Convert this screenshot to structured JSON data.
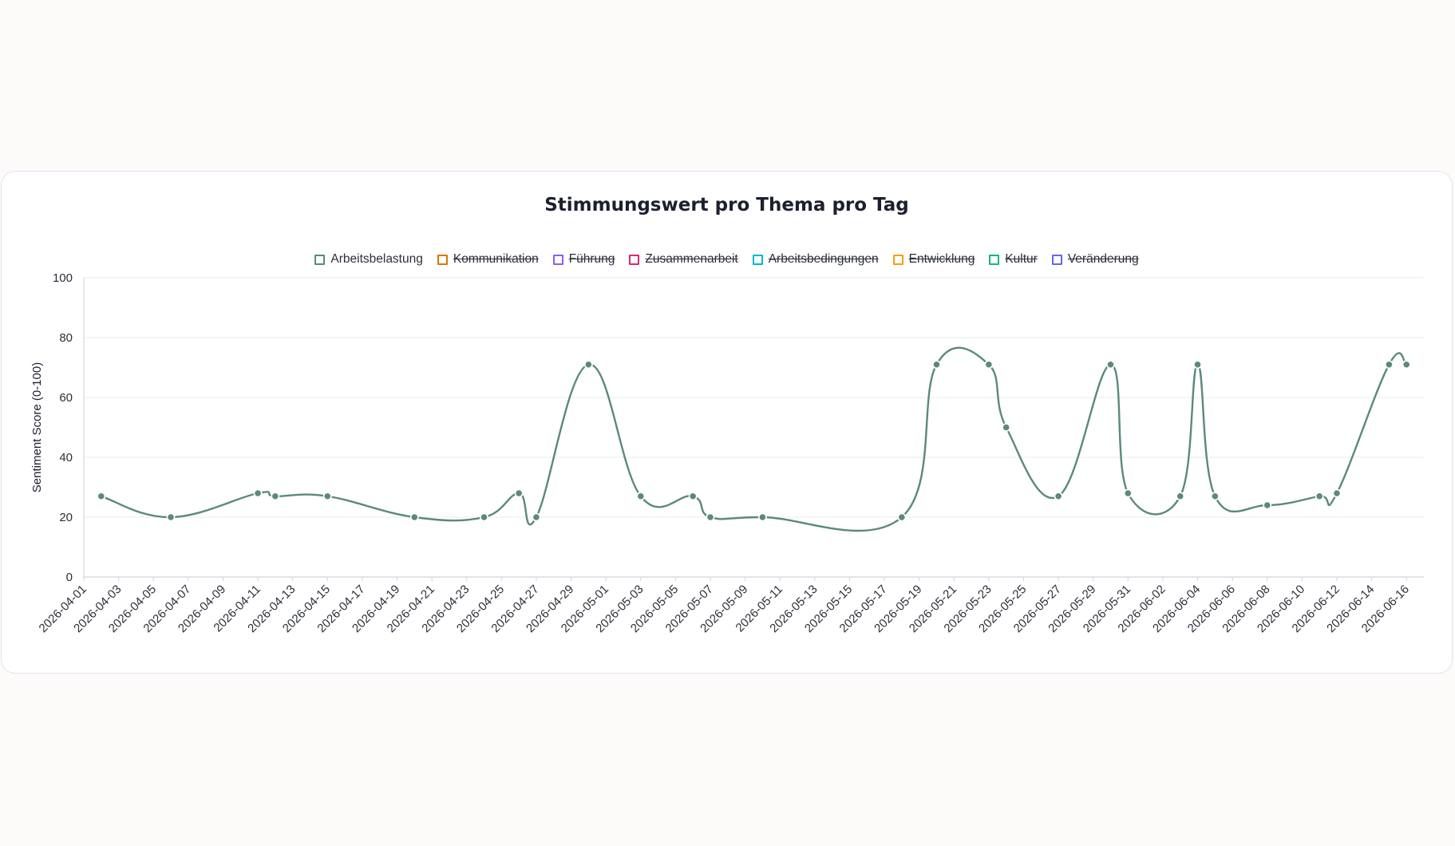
{
  "chart_data": {
    "type": "line",
    "title": "Stimmungswert pro Thema pro Tag",
    "ylabel": "Sentiment Score (0-100)",
    "xlabel": "",
    "ylim": [
      0,
      100
    ],
    "yticks": [
      0,
      20,
      40,
      60,
      80,
      100
    ],
    "xlim": [
      "2026-04-01",
      "2026-06-17"
    ],
    "x_tick_labels": [
      "2026-04-01",
      "2026-04-03",
      "2026-04-05",
      "2026-04-07",
      "2026-04-09",
      "2026-04-11",
      "2026-04-13",
      "2026-04-15",
      "2026-04-17",
      "2026-04-19",
      "2026-04-21",
      "2026-04-23",
      "2026-04-25",
      "2026-04-27",
      "2026-04-29",
      "2026-05-01",
      "2026-05-03",
      "2026-05-05",
      "2026-05-07",
      "2026-05-09",
      "2026-05-11",
      "2026-05-13",
      "2026-05-15",
      "2026-05-17",
      "2026-05-19",
      "2026-05-21",
      "2026-05-23",
      "2026-05-25",
      "2026-05-27",
      "2026-05-29",
      "2026-05-31",
      "2026-06-02",
      "2026-06-04",
      "2026-06-06",
      "2026-06-08",
      "2026-06-10",
      "2026-06-12",
      "2026-06-14",
      "2026-06-16"
    ],
    "grid": true,
    "legend_position": "top",
    "series": [
      {
        "name": "Arbeitsbelastung",
        "color": "#5a8a78",
        "visible": true,
        "points": [
          {
            "x": "2026-04-02",
            "y": 27
          },
          {
            "x": "2026-04-06",
            "y": 20
          },
          {
            "x": "2026-04-11",
            "y": 28
          },
          {
            "x": "2026-04-12",
            "y": 27
          },
          {
            "x": "2026-04-15",
            "y": 27
          },
          {
            "x": "2026-04-20",
            "y": 20
          },
          {
            "x": "2026-04-24",
            "y": 20
          },
          {
            "x": "2026-04-26",
            "y": 28
          },
          {
            "x": "2026-04-27",
            "y": 20
          },
          {
            "x": "2026-04-30",
            "y": 71
          },
          {
            "x": "2026-05-03",
            "y": 27
          },
          {
            "x": "2026-05-06",
            "y": 27
          },
          {
            "x": "2026-05-07",
            "y": 20
          },
          {
            "x": "2026-05-10",
            "y": 20
          },
          {
            "x": "2026-05-18",
            "y": 20
          },
          {
            "x": "2026-05-20",
            "y": 71
          },
          {
            "x": "2026-05-23",
            "y": 71
          },
          {
            "x": "2026-05-24",
            "y": 50
          },
          {
            "x": "2026-05-27",
            "y": 27
          },
          {
            "x": "2026-05-30",
            "y": 71
          },
          {
            "x": "2026-05-31",
            "y": 28
          },
          {
            "x": "2026-06-03",
            "y": 27
          },
          {
            "x": "2026-06-04",
            "y": 71
          },
          {
            "x": "2026-06-05",
            "y": 27
          },
          {
            "x": "2026-06-08",
            "y": 24
          },
          {
            "x": "2026-06-11",
            "y": 27
          },
          {
            "x": "2026-06-12",
            "y": 28
          },
          {
            "x": "2026-06-15",
            "y": 71
          },
          {
            "x": "2026-06-16",
            "y": 71
          }
        ]
      },
      {
        "name": "Kommunikation",
        "color": "#d97706",
        "visible": false,
        "points": []
      },
      {
        "name": "Führung",
        "color": "#8b5cf6",
        "visible": false,
        "points": []
      },
      {
        "name": "Zusammenarbeit",
        "color": "#db2777",
        "visible": false,
        "points": []
      },
      {
        "name": "Arbeitsbedingungen",
        "color": "#06b6d4",
        "visible": false,
        "points": []
      },
      {
        "name": "Entwicklung",
        "color": "#f59e0b",
        "visible": false,
        "points": []
      },
      {
        "name": "Kultur",
        "color": "#10b981",
        "visible": false,
        "points": []
      },
      {
        "name": "Veränderung",
        "color": "#6366f1",
        "visible": false,
        "points": []
      }
    ]
  }
}
